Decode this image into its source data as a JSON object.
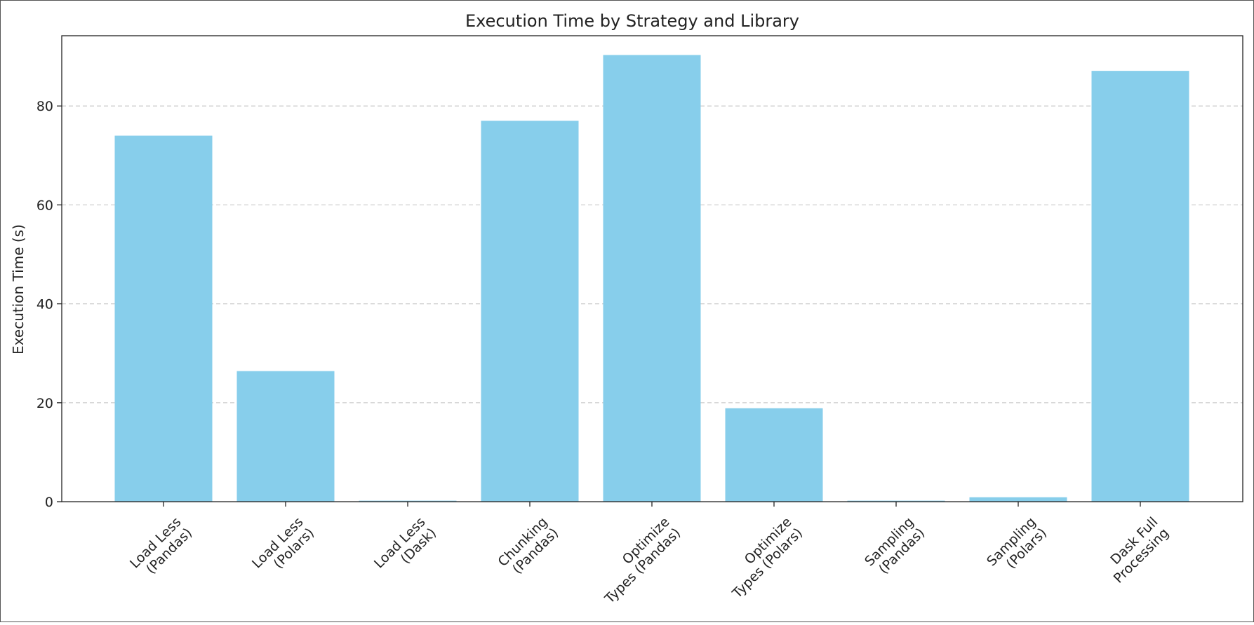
{
  "chart_data": {
    "type": "bar",
    "title": "Execution Time by Strategy and Library",
    "xlabel": "",
    "ylabel": "Execution Time (s)",
    "ylim": [
      0,
      94.2
    ],
    "yticks": [
      0,
      20,
      40,
      60,
      80
    ],
    "grid": "y, dashed",
    "categories": [
      "Load Less\n(Pandas)",
      "Load Less\n(Polars)",
      "Load Less\n(Dask)",
      "Chunking\n(Pandas)",
      "Optimize\nTypes (Pandas)",
      "Optimize\nTypes (Polars)",
      "Sampling\n(Pandas)",
      "Sampling\n(Polars)",
      "Dask Full\nProcessing"
    ],
    "values": [
      74.0,
      26.4,
      0.2,
      77.0,
      90.3,
      18.9,
      0.2,
      0.9,
      87.1
    ],
    "colors": {
      "bar": "#87CEEB",
      "axis": "#222222",
      "grid": "#c8c8c8"
    }
  }
}
